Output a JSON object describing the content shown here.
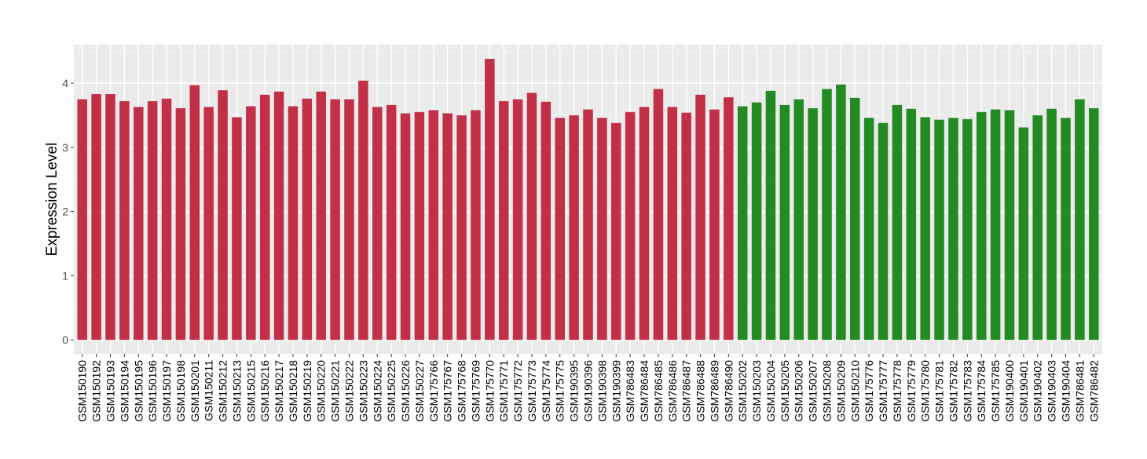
{
  "chart_data": {
    "type": "bar",
    "title": "",
    "xlabel": "",
    "ylabel": "Expression Level",
    "ylim": [
      0,
      4.6
    ],
    "yticks": [
      "0",
      "1",
      "2",
      "3",
      "4"
    ],
    "grid": true,
    "legend": "none",
    "colors": {
      "red_group": "#C23048",
      "green_group": "#228B22",
      "panel": "#EBEBEB"
    },
    "categories": [
      "GSM150190",
      "GSM150192",
      "GSM150193",
      "GSM150194",
      "GSM150195",
      "GSM150196",
      "GSM150197",
      "GSM150198",
      "GSM150201",
      "GSM150211",
      "GSM150212",
      "GSM150213",
      "GSM150215",
      "GSM150216",
      "GSM150217",
      "GSM150218",
      "GSM150219",
      "GSM150220",
      "GSM150221",
      "GSM150222",
      "GSM150223",
      "GSM150224",
      "GSM150225",
      "GSM150226",
      "GSM150227",
      "GSM175766",
      "GSM175767",
      "GSM175768",
      "GSM175769",
      "GSM175770",
      "GSM175771",
      "GSM175772",
      "GSM175773",
      "GSM175774",
      "GSM175775",
      "GSM190395",
      "GSM190396",
      "GSM190398",
      "GSM190399",
      "GSM786483",
      "GSM786484",
      "GSM786485",
      "GSM786486",
      "GSM786487",
      "GSM786488",
      "GSM786489",
      "GSM786490",
      "GSM150202",
      "GSM150203",
      "GSM150204",
      "GSM150205",
      "GSM150206",
      "GSM150207",
      "GSM150208",
      "GSM150209",
      "GSM150210",
      "GSM175776",
      "GSM175777",
      "GSM175778",
      "GSM175779",
      "GSM175780",
      "GSM175781",
      "GSM175782",
      "GSM175783",
      "GSM175784",
      "GSM175785",
      "GSM190400",
      "GSM190401",
      "GSM190402",
      "GSM190403",
      "GSM190404",
      "GSM786481",
      "GSM786482"
    ],
    "values": [
      3.75,
      3.83,
      3.83,
      3.72,
      3.63,
      3.72,
      3.76,
      3.61,
      3.97,
      3.63,
      3.89,
      3.47,
      3.64,
      3.82,
      3.87,
      3.64,
      3.76,
      3.87,
      3.75,
      3.75,
      4.04,
      3.63,
      3.66,
      3.53,
      3.55,
      3.58,
      3.53,
      3.5,
      3.58,
      4.38,
      3.72,
      3.75,
      3.85,
      3.71,
      3.46,
      3.5,
      3.59,
      3.46,
      3.38,
      3.55,
      3.63,
      3.91,
      3.63,
      3.54,
      3.82,
      3.59,
      3.78,
      3.64,
      3.7,
      3.88,
      3.66,
      3.75,
      3.61,
      3.91,
      3.98,
      3.77,
      3.46,
      3.38,
      3.66,
      3.6,
      3.47,
      3.43,
      3.46,
      3.44,
      3.55,
      3.59,
      3.58,
      3.31,
      3.5,
      3.6,
      3.46,
      3.75,
      3.61
    ],
    "groups": [
      "red",
      "red",
      "red",
      "red",
      "red",
      "red",
      "red",
      "red",
      "red",
      "red",
      "red",
      "red",
      "red",
      "red",
      "red",
      "red",
      "red",
      "red",
      "red",
      "red",
      "red",
      "red",
      "red",
      "red",
      "red",
      "red",
      "red",
      "red",
      "red",
      "red",
      "red",
      "red",
      "red",
      "red",
      "red",
      "red",
      "red",
      "red",
      "red",
      "red",
      "red",
      "red",
      "red",
      "red",
      "red",
      "red",
      "red",
      "green",
      "green",
      "green",
      "green",
      "green",
      "green",
      "green",
      "green",
      "green",
      "green",
      "green",
      "green",
      "green",
      "green",
      "green",
      "green",
      "green",
      "green",
      "green",
      "green",
      "green",
      "green",
      "green",
      "green",
      "green",
      "green"
    ]
  }
}
